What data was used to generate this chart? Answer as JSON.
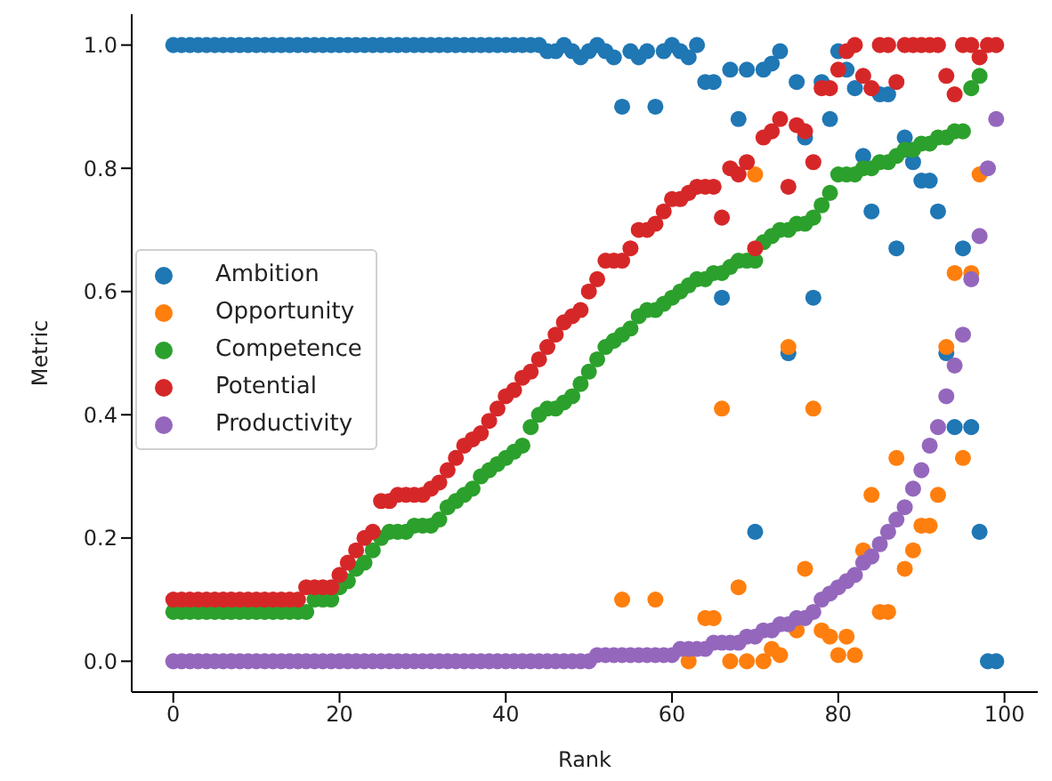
{
  "chart_data": {
    "type": "scatter",
    "xlabel": "Rank",
    "ylabel": "Metric",
    "x": [
      0,
      1,
      2,
      3,
      4,
      5,
      6,
      7,
      8,
      9,
      10,
      11,
      12,
      13,
      14,
      15,
      16,
      17,
      18,
      19,
      20,
      21,
      22,
      23,
      24,
      25,
      26,
      27,
      28,
      29,
      30,
      31,
      32,
      33,
      34,
      35,
      36,
      37,
      38,
      39,
      40,
      41,
      42,
      43,
      44,
      45,
      46,
      47,
      48,
      49,
      50,
      51,
      52,
      53,
      54,
      55,
      56,
      57,
      58,
      59,
      60,
      61,
      62,
      63,
      64,
      65,
      66,
      67,
      68,
      69,
      70,
      71,
      72,
      73,
      74,
      75,
      76,
      77,
      78,
      79,
      80,
      81,
      82,
      83,
      84,
      85,
      86,
      87,
      88,
      89,
      90,
      91,
      92,
      93,
      94,
      95,
      96,
      97,
      98,
      99
    ],
    "series": [
      {
        "name": "Ambition",
        "color": "#1f77b4",
        "values": [
          1.0,
          1.0,
          1.0,
          1.0,
          1.0,
          1.0,
          1.0,
          1.0,
          1.0,
          1.0,
          1.0,
          1.0,
          1.0,
          1.0,
          1.0,
          1.0,
          1.0,
          1.0,
          1.0,
          1.0,
          1.0,
          1.0,
          1.0,
          1.0,
          1.0,
          1.0,
          1.0,
          1.0,
          1.0,
          1.0,
          1.0,
          1.0,
          1.0,
          1.0,
          1.0,
          1.0,
          1.0,
          1.0,
          1.0,
          1.0,
          1.0,
          1.0,
          1.0,
          1.0,
          1.0,
          0.99,
          0.99,
          1.0,
          0.99,
          0.98,
          0.99,
          1.0,
          0.99,
          0.98,
          0.9,
          0.99,
          0.98,
          0.99,
          0.9,
          0.99,
          1.0,
          0.99,
          0.98,
          1.0,
          0.94,
          0.94,
          0.59,
          0.96,
          0.88,
          0.96,
          0.21,
          0.96,
          0.97,
          0.99,
          0.5,
          0.94,
          0.85,
          0.59,
          0.94,
          0.88,
          0.99,
          0.96,
          0.93,
          0.82,
          0.73,
          0.92,
          0.92,
          0.67,
          0.85,
          0.81,
          0.78,
          0.78,
          0.73,
          0.5,
          0.38,
          0.67,
          0.38,
          0.21,
          0.0,
          0.0
        ]
      },
      {
        "name": "Opportunity",
        "color": "#ff7f0e",
        "values": [
          null,
          null,
          null,
          null,
          null,
          null,
          null,
          null,
          null,
          null,
          null,
          null,
          null,
          null,
          null,
          null,
          null,
          null,
          null,
          null,
          null,
          null,
          null,
          null,
          null,
          null,
          null,
          null,
          null,
          null,
          null,
          null,
          null,
          null,
          null,
          null,
          null,
          null,
          null,
          null,
          null,
          null,
          null,
          null,
          null,
          null,
          null,
          null,
          null,
          null,
          null,
          null,
          null,
          null,
          0.1,
          null,
          null,
          null,
          0.1,
          null,
          null,
          null,
          0.0,
          null,
          0.07,
          0.07,
          0.41,
          0.0,
          0.12,
          0.0,
          0.79,
          0.0,
          0.02,
          0.01,
          0.51,
          0.05,
          0.15,
          0.41,
          0.05,
          0.04,
          0.01,
          0.04,
          0.01,
          0.18,
          0.27,
          0.08,
          0.08,
          0.33,
          0.15,
          0.18,
          0.22,
          0.22,
          0.27,
          0.51,
          0.63,
          0.33,
          0.63,
          0.79,
          null,
          null
        ]
      },
      {
        "name": "Competence",
        "color": "#2ca02c",
        "values": [
          0.08,
          0.08,
          0.08,
          0.08,
          0.08,
          0.08,
          0.08,
          0.08,
          0.08,
          0.08,
          0.08,
          0.08,
          0.08,
          0.08,
          0.08,
          0.08,
          0.08,
          0.1,
          0.1,
          0.1,
          0.12,
          0.13,
          0.15,
          0.16,
          0.18,
          0.2,
          0.21,
          0.21,
          0.21,
          0.22,
          0.22,
          0.22,
          0.23,
          0.25,
          0.26,
          0.27,
          0.28,
          0.3,
          0.31,
          0.32,
          0.33,
          0.34,
          0.35,
          0.38,
          0.4,
          0.41,
          0.41,
          0.42,
          0.43,
          0.45,
          0.47,
          0.49,
          0.51,
          0.52,
          0.53,
          0.54,
          0.56,
          0.57,
          0.57,
          0.58,
          0.59,
          0.6,
          0.61,
          0.62,
          0.62,
          0.63,
          0.63,
          0.64,
          0.65,
          0.65,
          0.65,
          0.68,
          0.69,
          0.7,
          0.7,
          0.71,
          0.71,
          0.72,
          0.74,
          0.76,
          0.79,
          0.79,
          0.79,
          0.8,
          0.8,
          0.81,
          0.81,
          0.82,
          0.83,
          0.83,
          0.84,
          0.84,
          0.85,
          0.85,
          0.86,
          0.86,
          0.93,
          0.95,
          null,
          null
        ]
      },
      {
        "name": "Potential",
        "color": "#d62728",
        "values": [
          0.1,
          0.1,
          0.1,
          0.1,
          0.1,
          0.1,
          0.1,
          0.1,
          0.1,
          0.1,
          0.1,
          0.1,
          0.1,
          0.1,
          0.1,
          0.1,
          0.12,
          0.12,
          0.12,
          0.12,
          0.14,
          0.16,
          0.18,
          0.2,
          0.21,
          0.26,
          0.26,
          0.27,
          0.27,
          0.27,
          0.27,
          0.28,
          0.29,
          0.31,
          0.33,
          0.35,
          0.36,
          0.37,
          0.39,
          0.41,
          0.43,
          0.44,
          0.46,
          0.47,
          0.49,
          0.51,
          0.53,
          0.55,
          0.56,
          0.57,
          0.6,
          0.62,
          0.65,
          0.65,
          0.65,
          0.67,
          0.7,
          0.7,
          0.71,
          0.73,
          0.75,
          0.75,
          0.76,
          0.77,
          0.77,
          0.77,
          0.72,
          0.8,
          0.79,
          0.81,
          0.67,
          0.85,
          0.86,
          0.88,
          0.77,
          0.87,
          0.86,
          0.81,
          0.93,
          0.93,
          0.96,
          0.99,
          1.0,
          0.95,
          0.93,
          1.0,
          1.0,
          0.94,
          1.0,
          1.0,
          1.0,
          1.0,
          1.0,
          0.95,
          0.92,
          1.0,
          1.0,
          0.98,
          1.0,
          1.0
        ]
      },
      {
        "name": "Productivity",
        "color": "#9467bd",
        "values": [
          0.0,
          0.0,
          0.0,
          0.0,
          0.0,
          0.0,
          0.0,
          0.0,
          0.0,
          0.0,
          0.0,
          0.0,
          0.0,
          0.0,
          0.0,
          0.0,
          0.0,
          0.0,
          0.0,
          0.0,
          0.0,
          0.0,
          0.0,
          0.0,
          0.0,
          0.0,
          0.0,
          0.0,
          0.0,
          0.0,
          0.0,
          0.0,
          0.0,
          0.0,
          0.0,
          0.0,
          0.0,
          0.0,
          0.0,
          0.0,
          0.0,
          0.0,
          0.0,
          0.0,
          0.0,
          0.0,
          0.0,
          0.0,
          0.0,
          0.0,
          0.0,
          0.01,
          0.01,
          0.01,
          0.01,
          0.01,
          0.01,
          0.01,
          0.01,
          0.01,
          0.01,
          0.02,
          0.02,
          0.02,
          0.02,
          0.03,
          0.03,
          0.03,
          0.03,
          0.04,
          0.04,
          0.05,
          0.05,
          0.06,
          0.06,
          0.07,
          0.07,
          0.08,
          0.1,
          0.11,
          0.12,
          0.13,
          0.14,
          0.16,
          0.17,
          0.19,
          0.21,
          0.23,
          0.25,
          0.28,
          0.31,
          0.35,
          0.38,
          0.43,
          0.48,
          0.53,
          0.62,
          0.69,
          0.8,
          0.88
        ]
      }
    ],
    "xlim": [
      -5,
      104
    ],
    "xticks": [
      0,
      20,
      40,
      60,
      80,
      100
    ],
    "ylim": [
      -0.05,
      1.05
    ],
    "yticks": [
      {
        "value": 0,
        "label": "0.0"
      },
      {
        "value": 0.2,
        "label": "0.2"
      },
      {
        "value": 0.4,
        "label": "0.4"
      },
      {
        "value": 0.6,
        "label": "0.6"
      },
      {
        "value": 0.8,
        "label": "0.8"
      },
      {
        "value": 1,
        "label": "1.0"
      }
    ],
    "legend": "center left",
    "marker": "circle",
    "grid": false
  }
}
